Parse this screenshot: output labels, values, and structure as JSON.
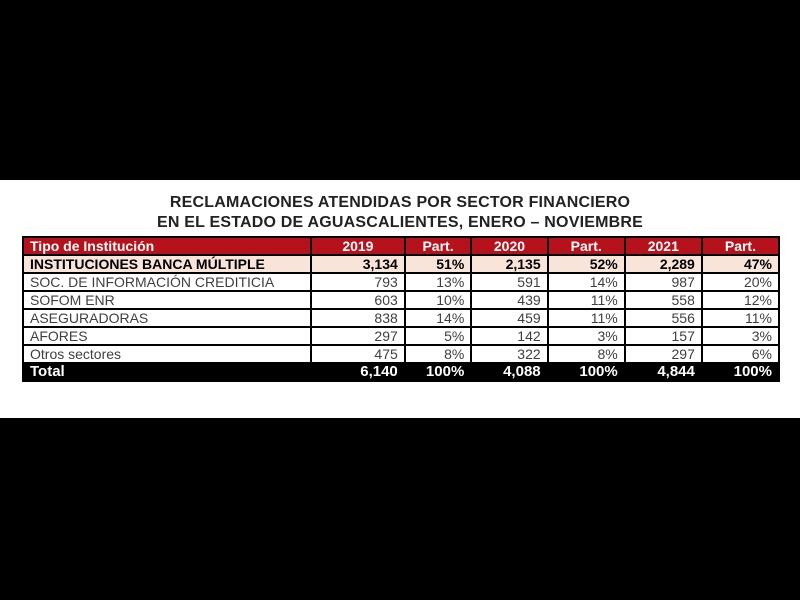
{
  "title": {
    "line1": "RECLAMACIONES ATENDIDAS POR SECTOR FINANCIERO",
    "line2": "EN EL ESTADO DE AGUASCALIENTES, ENERO – NOVIEMBRE"
  },
  "colors": {
    "page_bg": "#000000",
    "panel_bg": "#FFFFFF",
    "header_red": "#B5121B",
    "highlight_pink": "#F9E4DA",
    "total_black": "#000000"
  },
  "table": {
    "columns": [
      "Tipo de Institución",
      "2019",
      "Part.",
      "2020",
      "Part.",
      "2021",
      "Part."
    ],
    "column_widths_pct": [
      38.1,
      12.4,
      8.8,
      10.1,
      10.2,
      10.2,
      10.2
    ],
    "rows": [
      {
        "label": "INSTITUCIONES BANCA MÚLTIPLE",
        "values": [
          "3,134",
          "51%",
          "2,135",
          "52%",
          "2,289",
          "47%"
        ],
        "highlight": true
      },
      {
        "label": "SOC. DE INFORMACIÓN CREDITICIA",
        "values": [
          "793",
          "13%",
          "591",
          "14%",
          "987",
          "20%"
        ],
        "highlight": false
      },
      {
        "label": "SOFOM ENR",
        "values": [
          "603",
          "10%",
          "439",
          "11%",
          "558",
          "12%"
        ],
        "highlight": false
      },
      {
        "label": "ASEGURADORAS",
        "values": [
          "838",
          "14%",
          "459",
          "11%",
          "556",
          "11%"
        ],
        "highlight": false
      },
      {
        "label": "AFORES",
        "values": [
          "297",
          "5%",
          "142",
          "3%",
          "157",
          "3%"
        ],
        "highlight": false
      },
      {
        "label": "Otros sectores",
        "values": [
          "475",
          "8%",
          "322",
          "8%",
          "297",
          "6%"
        ],
        "highlight": false
      }
    ],
    "total": {
      "label": "Total",
      "values": [
        "6,140",
        "100%",
        "4,088",
        "100%",
        "4,844",
        "100%"
      ]
    }
  },
  "chart_data": {
    "type": "table",
    "title": "RECLAMACIONES ATENDIDAS POR SECTOR FINANCIERO EN EL ESTADO DE AGUASCALIENTES, ENERO – NOVIEMBRE",
    "columns": [
      "Tipo de Institución",
      "2019",
      "Part.",
      "2020",
      "Part.",
      "2021",
      "Part."
    ],
    "categories": [
      "INSTITUCIONES BANCA MÚLTIPLE",
      "SOC. DE INFORMACIÓN CREDITICIA",
      "SOFOM ENR",
      "ASEGURADORAS",
      "AFORES",
      "Otros sectores"
    ],
    "series": [
      {
        "name": "2019",
        "values": [
          3134,
          793,
          603,
          838,
          297,
          475
        ]
      },
      {
        "name": "2019 Part.",
        "values": [
          "51%",
          "13%",
          "10%",
          "14%",
          "5%",
          "8%"
        ]
      },
      {
        "name": "2020",
        "values": [
          2135,
          591,
          439,
          459,
          142,
          322
        ]
      },
      {
        "name": "2020 Part.",
        "values": [
          "52%",
          "14%",
          "11%",
          "11%",
          "3%",
          "8%"
        ]
      },
      {
        "name": "2021",
        "values": [
          2289,
          987,
          558,
          556,
          157,
          297
        ]
      },
      {
        "name": "2021 Part.",
        "values": [
          "47%",
          "20%",
          "12%",
          "11%",
          "3%",
          "6%"
        ]
      }
    ],
    "totals": {
      "2019": 6140,
      "2019 Part.": "100%",
      "2020": 4088,
      "2020 Part.": "100%",
      "2021": 4844,
      "2021 Part.": "100%"
    }
  }
}
